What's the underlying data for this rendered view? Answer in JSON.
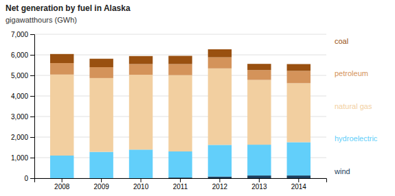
{
  "chart_data": {
    "type": "bar",
    "title": "Net generation by fuel in Alaska",
    "subtitle": "gigawatthours  (GWh)",
    "categories": [
      "2008",
      "2009",
      "2010",
      "2011",
      "2012",
      "2013",
      "2014"
    ],
    "series": [
      {
        "name": "wind",
        "color": "#1c3f5e",
        "values": [
          0,
          0,
          0,
          30,
          80,
          130,
          130
        ]
      },
      {
        "name": "hydroelectric",
        "color": "#62cffa",
        "values": [
          1100,
          1280,
          1390,
          1270,
          1540,
          1500,
          1620
        ]
      },
      {
        "name": "natural gas",
        "color": "#f2cfa0",
        "values": [
          3940,
          3590,
          3640,
          3710,
          3720,
          3150,
          2870
        ]
      },
      {
        "name": "petroleum",
        "color": "#d4935a",
        "values": [
          560,
          530,
          520,
          540,
          540,
          480,
          600
        ]
      },
      {
        "name": "coal",
        "color": "#995010",
        "values": [
          440,
          410,
          390,
          400,
          390,
          300,
          330
        ]
      }
    ],
    "stacked": true,
    "ylim": [
      0,
      7000
    ],
    "yticks": [
      0,
      {
        "value": 1000,
        "label": "1,000"
      },
      {
        "value": 2000,
        "label": "2,000"
      },
      {
        "value": 3000,
        "label": "3,000"
      },
      {
        "value": 4000,
        "label": "4,000"
      },
      {
        "value": 5000,
        "label": "5,000"
      },
      {
        "value": 6000,
        "label": "6,000"
      },
      {
        "value": 7000,
        "label": "7,000"
      }
    ],
    "grid": true,
    "legend": "right"
  }
}
